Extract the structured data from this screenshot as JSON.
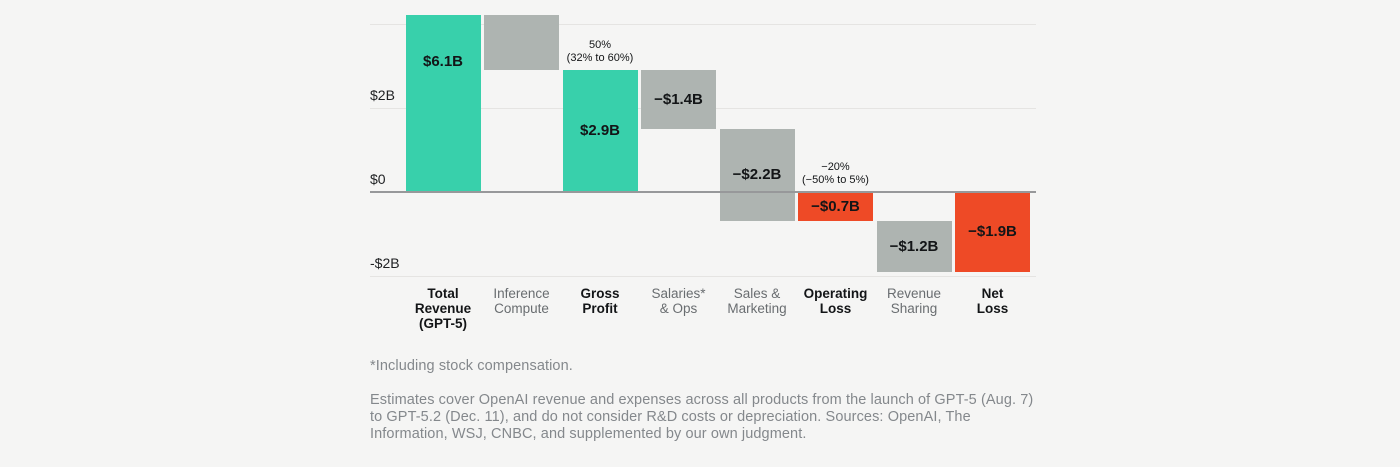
{
  "page": {
    "background": "#f5f5f4"
  },
  "chart_data": {
    "type": "bar",
    "subtype": "waterfall",
    "title": "",
    "xlabel": "",
    "ylabel": "",
    "grid": true,
    "legend_position": "none",
    "ylim_visible": [
      -2.1,
      4.2
    ],
    "y_axis": {
      "ticks": [
        {
          "value": 4,
          "label": ""
        },
        {
          "value": 2,
          "label": "$2B"
        },
        {
          "value": 0,
          "label": "$0"
        },
        {
          "value": -2,
          "label": "-$2B"
        }
      ]
    },
    "categories": [
      "Total Revenue (GPT-5)",
      "Inference Compute",
      "Gross Profit",
      "Salaries* & Ops",
      "Sales & Marketing",
      "Operating Loss",
      "Revenue Sharing",
      "Net Loss"
    ],
    "bars": [
      {
        "category": "Total Revenue (GPT-5)",
        "category_lines": [
          "Total",
          "Revenue",
          "(GPT-5)"
        ],
        "emphasis": true,
        "start": 0,
        "end": 6.1,
        "label": "$6.1B",
        "color": "teal",
        "clipped_at_top": true
      },
      {
        "category": "Inference Compute",
        "category_lines": [
          "Inference",
          "Compute"
        ],
        "emphasis": false,
        "start": 6.1,
        "end": 2.9,
        "label": "",
        "color": "gray",
        "clipped_at_top": true
      },
      {
        "category": "Gross Profit",
        "category_lines": [
          "Gross",
          "Profit"
        ],
        "emphasis": true,
        "start": 0,
        "end": 2.9,
        "label": "$2.9B",
        "color": "teal",
        "annotation_lines": [
          "50%",
          "(32% to 60%)"
        ]
      },
      {
        "category": "Salaries* & Ops",
        "category_lines": [
          "Salaries*",
          "& Ops"
        ],
        "emphasis": false,
        "start": 2.9,
        "end": 1.5,
        "label": "−$1.4B",
        "color": "gray"
      },
      {
        "category": "Sales & Marketing",
        "category_lines": [
          "Sales &",
          "Marketing"
        ],
        "emphasis": false,
        "start": 1.5,
        "end": -0.7,
        "label": "−$2.2B",
        "color": "gray"
      },
      {
        "category": "Operating Loss",
        "category_lines": [
          "Operating",
          "Loss"
        ],
        "emphasis": true,
        "start": 0,
        "end": -0.7,
        "label": "−$0.7B",
        "color": "red",
        "annotation_lines": [
          "−20%",
          "(−50% to 5%)"
        ]
      },
      {
        "category": "Revenue Sharing",
        "category_lines": [
          "Revenue",
          "Sharing"
        ],
        "emphasis": false,
        "start": -0.7,
        "end": -1.9,
        "label": "−$1.2B",
        "color": "gray"
      },
      {
        "category": "Net Loss",
        "category_lines": [
          "Net",
          "Loss"
        ],
        "emphasis": true,
        "start": 0,
        "end": -1.9,
        "label": "−$1.9B",
        "color": "red"
      }
    ],
    "colors": {
      "teal": "#38d0ab",
      "gray": "#aeb4b1",
      "red": "#ee4a26",
      "grid": "#e5e4e2",
      "zero_line": "#97989a",
      "axis_text": "#1e2022",
      "value_text": "#131517",
      "category_emphasis": "#131517",
      "category_muted": "#696d70",
      "annotation_text": "#131517"
    }
  },
  "footnotes": {
    "note1": "*Including stock compensation.",
    "note2": "Estimates cover OpenAI revenue and expenses across all products from the launch of GPT-5 (Aug. 7) to GPT-5.2 (Dec. 11), and do not consider R&D costs or depreciation. Sources: OpenAI, The Information, WSJ, CNBC, and supplemented by our own judgment."
  }
}
